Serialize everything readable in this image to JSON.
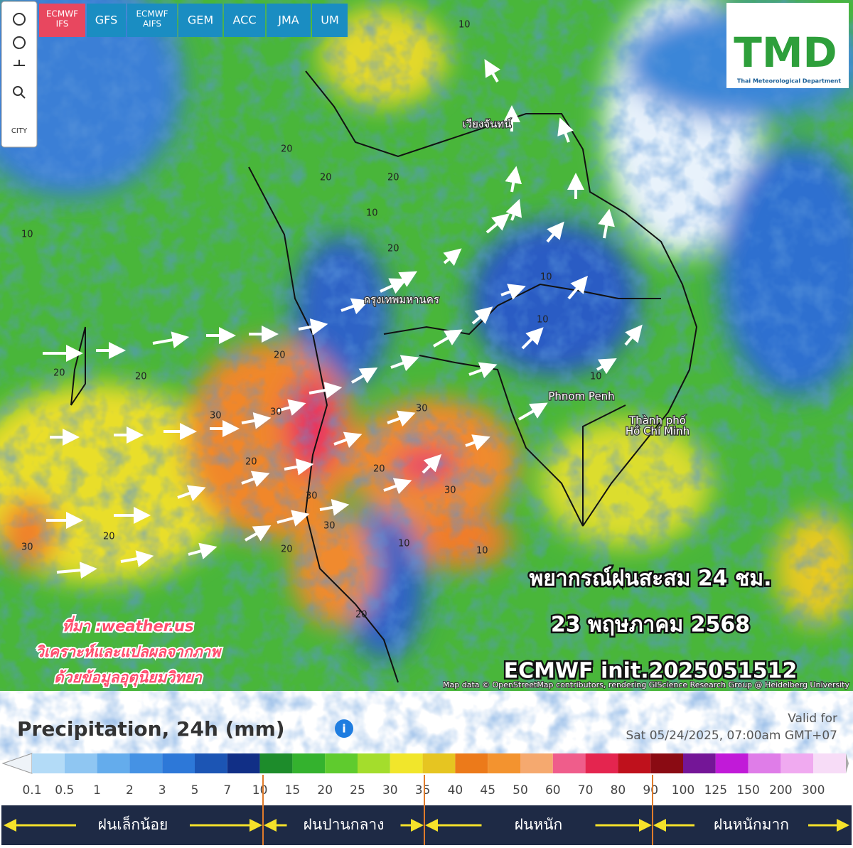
{
  "toolbar": {
    "icons": [
      "CITY"
    ],
    "models": [
      [
        "ECMWF",
        "IFS"
      ],
      [
        "GFS"
      ],
      [
        "ECMWF",
        "AIFS"
      ],
      [
        "GEM"
      ],
      [
        "ACC"
      ],
      [
        "JMA"
      ],
      [
        "UM"
      ]
    ]
  },
  "logo": {
    "title": "TMD",
    "subtitle": "Thai Meteorological Department"
  },
  "map": {
    "places": [
      "Phnom Penh",
      "Thành phố",
      "Hồ Chí Minh",
      "กรุงเทพมหานคร",
      "เวียงจันทน์"
    ],
    "contours": [
      "20",
      "20",
      "10",
      "20",
      "10",
      "20",
      "10",
      "10",
      "20",
      "30",
      "30",
      "20",
      "30",
      "30",
      "20",
      "30",
      "20",
      "30",
      "20",
      "10",
      "10",
      "20",
      "30",
      "20",
      "10",
      "10",
      "20"
    ],
    "overlay": [
      "พยากรณ์ฝนสะสม 24 ชม.",
      "23 พฤษภาคม 2568",
      "ECMWF init.2025051512"
    ],
    "source": [
      "ที่มา :weather.us",
      "วิเคราะห์และแปลผลจากภาพ",
      "ด้วยข้อมูลอุตุนิยมวิทยา"
    ],
    "attribution": "Map data © OpenStreetMap contributors, rendering GIScience Research Group @ Heidelberg University"
  },
  "legend": {
    "title": "Precipitation, 24h (mm)",
    "valid_label": "Valid for",
    "valid_time": "Sat 05/24/2025, 07:00am GMT+07",
    "ticks": [
      0.1,
      0.5,
      1,
      2,
      3,
      5,
      7,
      10,
      15,
      20,
      25,
      30,
      35,
      40,
      45,
      50,
      60,
      70,
      80,
      90,
      100,
      125,
      150,
      200,
      300
    ],
    "colors": [
      "#b3dbf7",
      "#8fc6f2",
      "#64acec",
      "#4592e4",
      "#2d78d8",
      "#1c55b4",
      "#112f86",
      "#1d8c2b",
      "#34b22e",
      "#5fcb2e",
      "#a4dd2c",
      "#f1e62b",
      "#e6c521",
      "#ec7a1a",
      "#f3932f",
      "#f5a96f",
      "#ef5d8b",
      "#e4254f",
      "#bf111c",
      "#8a0b13",
      "#741697",
      "#c11ad8",
      "#df7de8",
      "#f0aaf0",
      "#f7dcf7"
    ],
    "classes": [
      "ฝนเล็กน้อย",
      "ฝนปานกลาง",
      "ฝนหนัก",
      "ฝนหนักมาก"
    ]
  }
}
